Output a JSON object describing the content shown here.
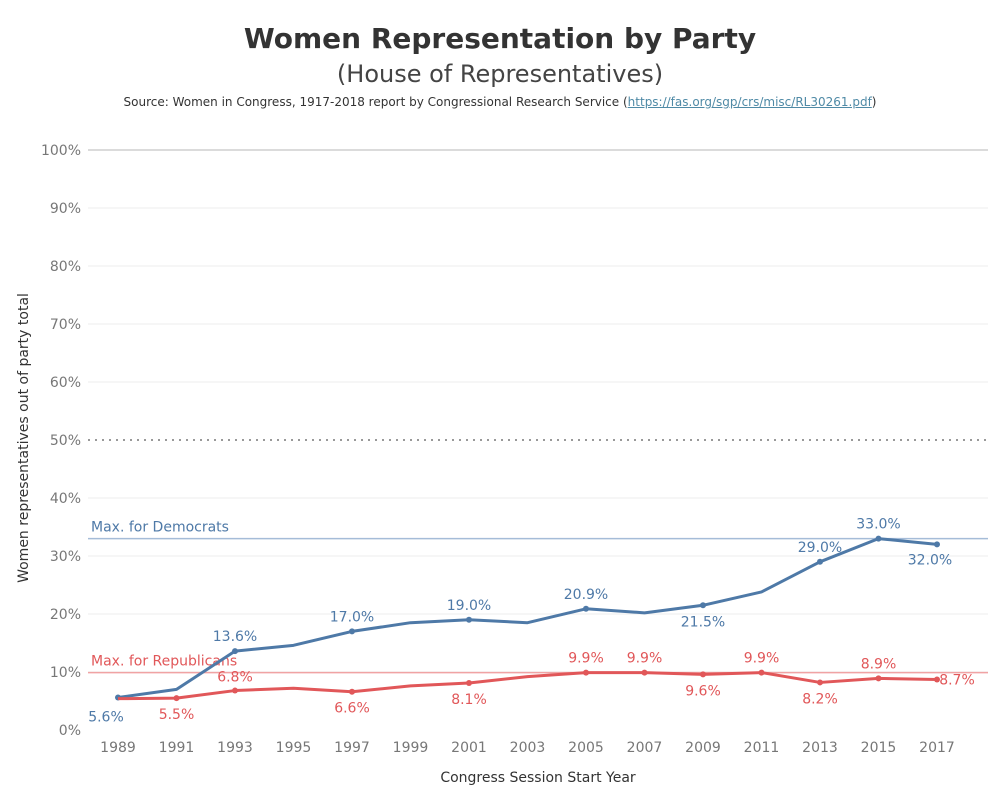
{
  "header": {
    "title": "Women Representation by Party",
    "subtitle": "(House of Representatives)",
    "source_prefix": "Source: Women in Congress, 1917-2018 report by Congressional Research Service (",
    "source_link": "https://fas.org/sgp/crs/misc/RL30261.pdf",
    "source_suffix": ")"
  },
  "colors": {
    "democrats": "#4e79a7",
    "republicans": "#e15759",
    "max_democrats_line": "#a5bcd8",
    "max_republicans_line": "#f0a3a4"
  },
  "chart_data": {
    "type": "line",
    "xlabel": "Congress Session Start Year",
    "ylabel": "Women representatives out of party total",
    "ylim": [
      0,
      100
    ],
    "y_ticks": [
      "0%",
      "10%",
      "20%",
      "30%",
      "40%",
      "50%",
      "60%",
      "70%",
      "80%",
      "90%",
      "100%"
    ],
    "categories": [
      "1989",
      "1991",
      "1993",
      "1995",
      "1997",
      "1999",
      "2001",
      "2003",
      "2005",
      "2007",
      "2009",
      "2011",
      "2013",
      "2015",
      "2017"
    ],
    "series": [
      {
        "key": "democrats",
        "values": [
          5.6,
          7.0,
          13.6,
          14.6,
          17.0,
          18.5,
          19.0,
          18.5,
          20.9,
          20.2,
          21.5,
          23.8,
          29.0,
          33.0,
          32.0
        ],
        "labels": [
          "5.6%",
          "",
          "13.6%",
          "",
          "17.0%",
          "",
          "19.0%",
          "",
          "20.9%",
          "",
          "21.5%",
          "",
          "29.0%",
          "33.0%",
          "32.0%"
        ]
      },
      {
        "key": "republicans",
        "values": [
          5.4,
          5.5,
          6.8,
          7.2,
          6.6,
          7.6,
          8.1,
          9.2,
          9.9,
          9.9,
          9.6,
          9.9,
          8.2,
          8.9,
          8.7
        ],
        "labels": [
          "",
          "5.5%",
          "6.8%",
          "",
          "6.6%",
          "",
          "8.1%",
          "",
          "9.9%",
          "9.9%",
          "9.6%",
          "9.9%",
          "8.2%",
          "8.9%",
          "8.7%"
        ]
      }
    ],
    "reference_lines": [
      {
        "key": "democrats",
        "label": "Max. for Democrats",
        "value": 33.0
      },
      {
        "key": "republicans",
        "label": "Max. for Republicans",
        "value": 9.9
      },
      {
        "key": "fifty",
        "label": "",
        "value": 50
      }
    ]
  }
}
